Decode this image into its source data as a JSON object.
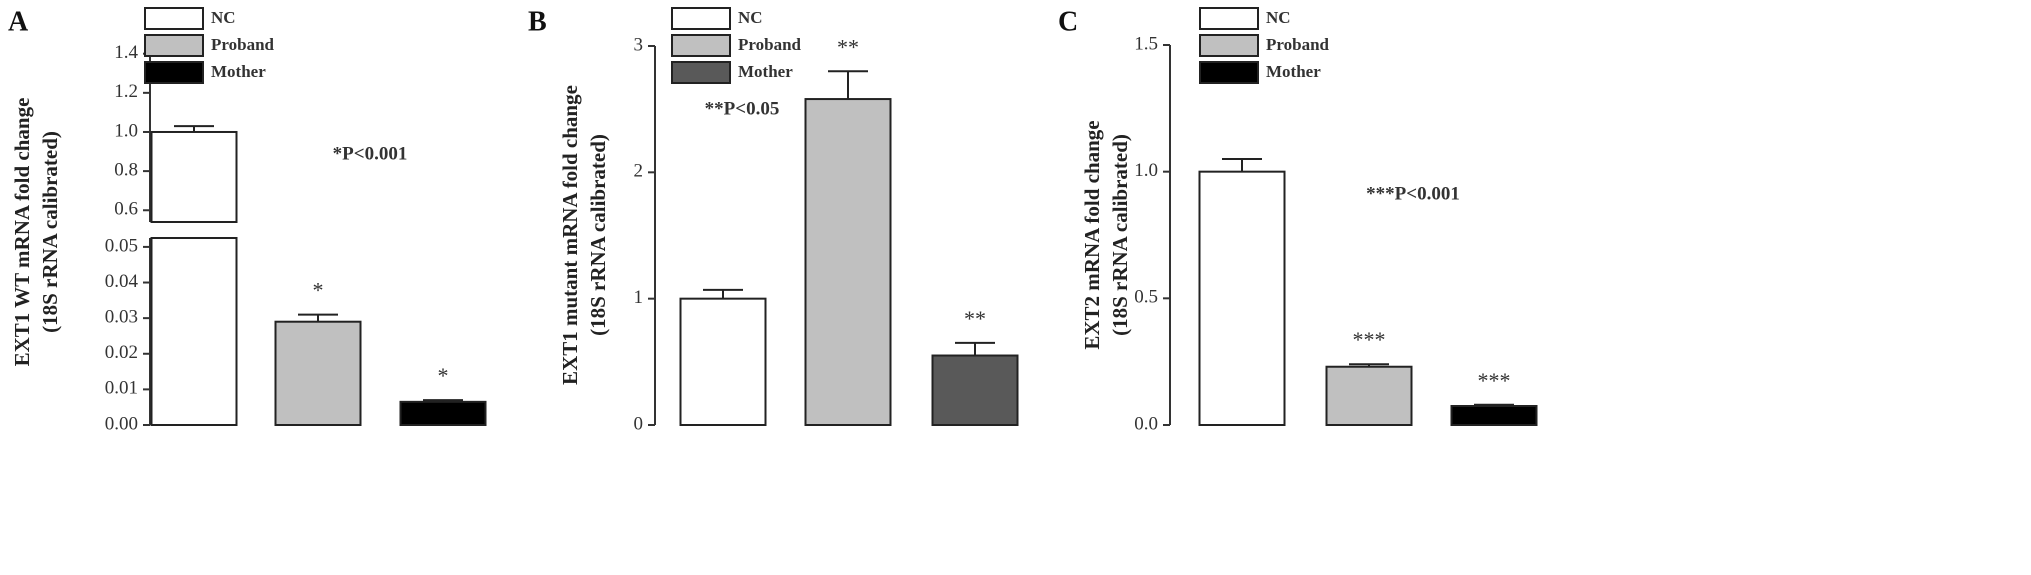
{
  "chart_data": [
    {
      "type": "bar",
      "label": "A",
      "ylabel": [
        "EXT1 WT mRNA fold change",
        "(18S rRNA calibrated)"
      ],
      "categories": [
        "NC",
        "Proband",
        "Mother"
      ],
      "colors": [
        "#ffffff",
        "#c0c0c0",
        "#000000"
      ],
      "values": [
        1.0,
        0.029,
        0.0065
      ],
      "errors": [
        0.03,
        0.002,
        0.0005
      ],
      "significance": [
        null,
        "*",
        "*"
      ],
      "annotation": "*P<0.001",
      "ylim": [
        0,
        0.0525
      ],
      "yticks": [
        {
          "value": 0,
          "label": "0.00"
        },
        {
          "value": 0.01,
          "label": "0.01"
        },
        {
          "value": 0.02,
          "label": "0.02"
        },
        {
          "value": 0.03,
          "label": "0.03"
        },
        {
          "value": 0.04,
          "label": "0.04"
        },
        {
          "value": 0.05,
          "label": "0.05"
        }
      ],
      "y_break": {
        "ylim": [
          0.54,
          1.47
        ],
        "yticks": [
          0.6,
          0.8,
          {
            "value": 1.0,
            "label": "1.0"
          },
          1.2,
          1.4
        ]
      }
    },
    {
      "type": "bar",
      "label": "B",
      "ylabel": [
        "EXT1 mutant mRNA fold change",
        "(18S rRNA calibrated)"
      ],
      "categories": [
        "NC",
        "Proband",
        "Mother"
      ],
      "colors": [
        "#ffffff",
        "#c0c0c0",
        "#595959"
      ],
      "values": [
        1.0,
        2.58,
        0.55
      ],
      "errors": [
        0.07,
        0.22,
        0.1
      ],
      "significance": [
        null,
        "**",
        "**"
      ],
      "annotation": "**P<0.05",
      "ylim": [
        0,
        3
      ],
      "yticks": [
        0,
        1,
        2,
        3
      ]
    },
    {
      "type": "bar",
      "label": "C",
      "ylabel": [
        "EXT2 mRNA fold change",
        "(18S rRNA calibrated)"
      ],
      "categories": [
        "NC",
        "Proband",
        "Mother"
      ],
      "colors": [
        "#ffffff",
        "#c0c0c0",
        "#000000"
      ],
      "values": [
        1.0,
        0.23,
        0.075
      ],
      "errors": [
        0.05,
        0.01,
        0.005
      ],
      "significance": [
        null,
        "***",
        "***"
      ],
      "annotation": "***P<0.001",
      "ylim": [
        0,
        1.5
      ],
      "yticks": [
        {
          "value": 0,
          "label": "0.0"
        },
        {
          "value": 0.5,
          "label": "0.5"
        },
        {
          "value": 1.0,
          "label": "1.0"
        },
        {
          "value": 1.5,
          "label": "1.5"
        }
      ]
    }
  ]
}
